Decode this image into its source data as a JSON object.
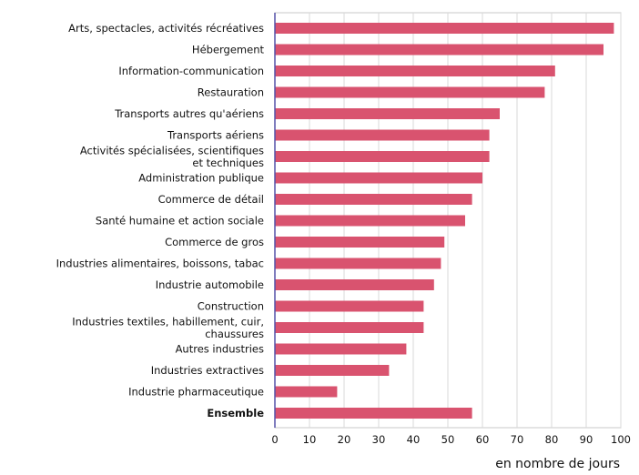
{
  "chart_data": {
    "type": "bar",
    "orientation": "horizontal",
    "categories": [
      "Arts, spectacles, activités récréatives",
      "Hébergement",
      "Information-communication",
      "Restauration",
      "Transports autres qu'aériens",
      "Transports aériens",
      [
        "Activités spécialisées, scientifiques",
        "et techniques"
      ],
      "Administration publique",
      "Commerce de détail",
      "Santé humaine et action sociale",
      "Commerce de gros",
      "Industries alimentaires, boissons, tabac",
      "Industrie automobile",
      "Construction",
      [
        "Industries textiles, habillement, cuir,",
        "chaussures"
      ],
      "Autres industries",
      "Industries extractives",
      "Industrie pharmaceutique",
      "Ensemble"
    ],
    "bold_categories": [
      "Ensemble"
    ],
    "values": [
      98,
      95,
      81,
      78,
      65,
      62,
      62,
      60,
      57,
      55,
      49,
      48,
      46,
      43,
      43,
      38,
      33,
      18,
      57
    ],
    "xlim": [
      0,
      100
    ],
    "x_ticks": [
      0,
      10,
      20,
      30,
      40,
      50,
      60,
      70,
      80,
      90,
      100
    ],
    "xlabel": "en nombre de jours",
    "grid": "vertical",
    "colors": {
      "bar": "#d9536f",
      "axis": "#5552a8",
      "grid": "#d8d8d8",
      "border": "#c8c8c8"
    }
  }
}
